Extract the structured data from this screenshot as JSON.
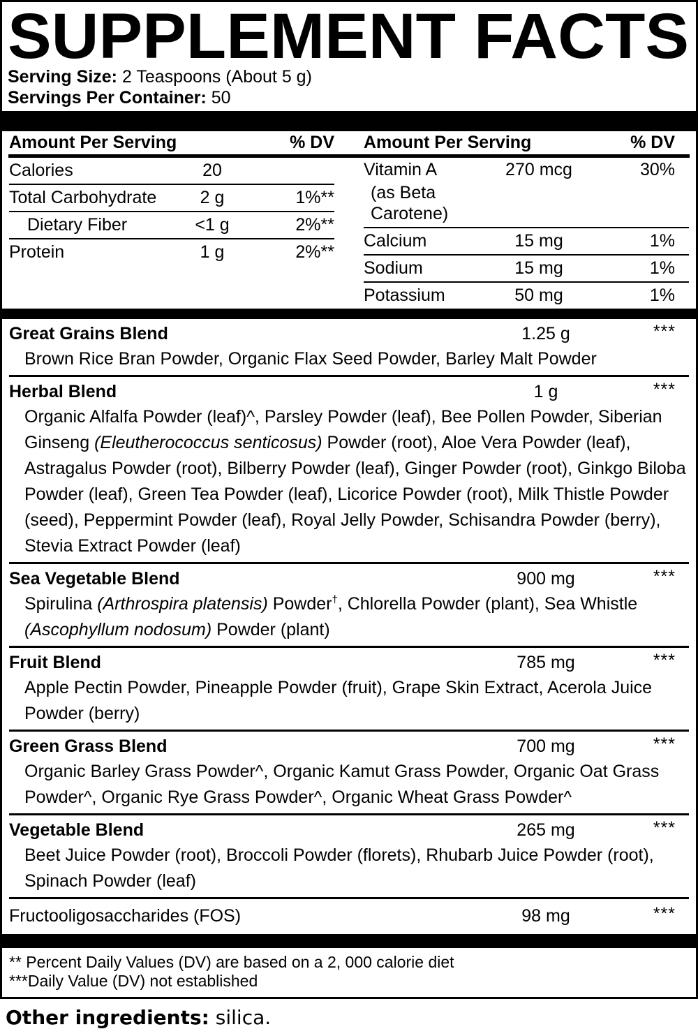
{
  "title": "SUPPLEMENT FACTS",
  "serving": {
    "size_label": "Serving Size:",
    "size_value": "2 Teaspoons (About 5 g)",
    "container_label": "Servings Per Container:",
    "container_value": "50"
  },
  "nutrient_table": {
    "left": {
      "header_amount": "Amount Per Serving",
      "header_dv": "% DV",
      "rows": [
        {
          "name": "Calories",
          "amount": "20",
          "dv": ""
        },
        {
          "name": "Total Carbohydrate",
          "amount": "2 g",
          "dv": "1%**"
        },
        {
          "name": "Dietary Fiber",
          "amount": "<1 g",
          "dv": "2%**"
        },
        {
          "name": "Protein",
          "amount": "1 g",
          "dv": "2%**"
        }
      ]
    },
    "right": {
      "header_amount": "Amount Per Serving",
      "header_dv": "% DV",
      "rows": [
        {
          "name": "Vitamin A",
          "name2": "(as Beta Carotene)",
          "amount": "270 mcg",
          "dv": "30%"
        },
        {
          "name": "Calcium",
          "amount": "15 mg",
          "dv": "1%"
        },
        {
          "name": "Sodium",
          "amount": "15 mg",
          "dv": "1%"
        },
        {
          "name": "Potassium",
          "amount": "50 mg",
          "dv": "1%"
        }
      ]
    }
  },
  "blends": [
    {
      "name": "Great Grains Blend",
      "amount": "1.25 g",
      "dv": "***",
      "ingredients": [
        {
          "t": "Brown Rice Bran Powder, Organic Flax Seed Powder, Barley Malt Powder"
        }
      ]
    },
    {
      "name": "Herbal Blend",
      "amount": "1 g",
      "dv": "***",
      "ingredients": [
        {
          "t": "Organic Alfalfa Powder (leaf)^, Parsley Powder (leaf), Bee Pollen Powder, Siberian Ginseng "
        },
        {
          "t": "(Eleutherococcus senticosus)",
          "tag": "i"
        },
        {
          "t": " Powder (root), Aloe Vera Powder (leaf), Astragalus Powder (root), Bilberry Powder (leaf), Ginger Powder (root), Ginkgo Biloba Powder (leaf), Green Tea Powder (leaf), Licorice Powder (root), Milk Thistle Powder (seed), Peppermint Powder (leaf), Royal Jelly Powder, Schisandra Powder (berry), Stevia Extract Powder (leaf)"
        }
      ]
    },
    {
      "name": "Sea Vegetable Blend",
      "amount": "900 mg",
      "dv": "***",
      "ingredients": [
        {
          "t": "Spirulina "
        },
        {
          "t": "(Arthrospira platensis)",
          "tag": "i"
        },
        {
          "t": " Powder"
        },
        {
          "t": "†",
          "tag": "sup"
        },
        {
          "t": ", Chlorella Powder (plant), Sea Whistle "
        },
        {
          "t": "(Ascophyllum nodosum)",
          "tag": "i"
        },
        {
          "t": " Powder (plant)"
        }
      ]
    },
    {
      "name": "Fruit Blend",
      "amount": "785 mg",
      "dv": "***",
      "ingredients": [
        {
          "t": "Apple Pectin Powder, Pineapple Powder (fruit), Grape Skin Extract, Acerola Juice Powder (berry)"
        }
      ]
    },
    {
      "name": "Green Grass Blend",
      "amount": "700 mg",
      "dv": "***",
      "ingredients": [
        {
          "t": "Organic Barley Grass Powder^, Organic Kamut Grass Powder, Organic Oat Grass Powder^, Organic Rye Grass Powder^, Organic Wheat Grass Powder^"
        }
      ]
    },
    {
      "name": "Vegetable Blend",
      "amount": "265 mg",
      "dv": "***",
      "ingredients": [
        {
          "t": "Beet Juice Powder (root), Broccoli Powder (florets), Rhubarb Juice Powder (root), Spinach Powder (leaf)"
        }
      ]
    },
    {
      "name": "Fructooligosaccharides (FOS)",
      "amount": "98 mg",
      "dv": "***",
      "ingredients": []
    }
  ],
  "footnotes": [
    "** Percent Daily Values (DV) are based on a 2, 000 calorie diet",
    "***Daily Value (DV) not established"
  ],
  "other_ingredients": {
    "label": "Other ingredients:",
    "value": "silica."
  }
}
